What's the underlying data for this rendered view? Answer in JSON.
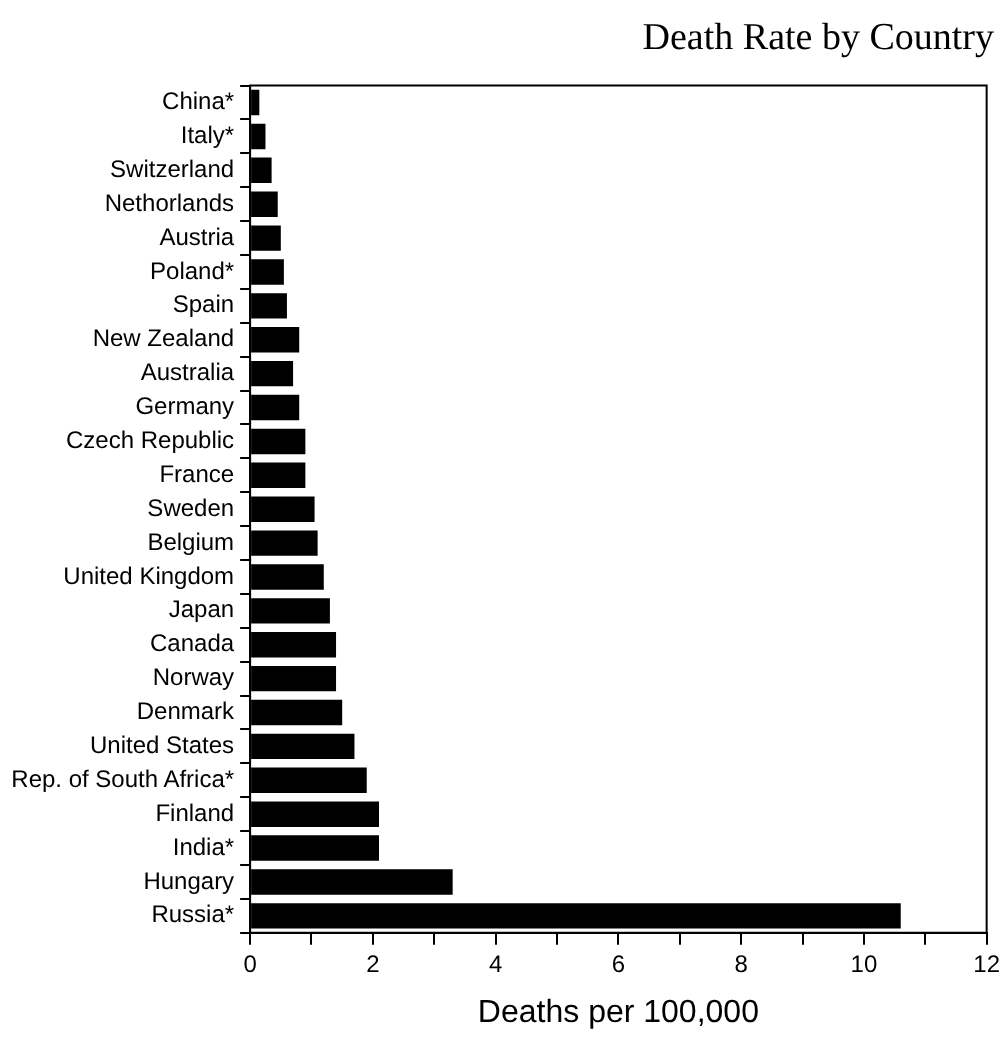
{
  "chart_data": {
    "type": "bar",
    "orientation": "horizontal",
    "title": "Death Rate by Country",
    "xlabel": "Deaths per 100,000",
    "categories": [
      "China*",
      "Italy*",
      "Switzerland",
      "Nethorlands",
      "Austria",
      "Poland*",
      "Spain",
      "New Zealand",
      "Australia",
      "Germany",
      "Czech Republic",
      "France",
      "Sweden",
      "Belgium",
      "United Kingdom",
      "Japan",
      "Canada",
      "Norway",
      "Denmark",
      "United States",
      "Rep. of South Africa*",
      "Finland",
      "India*",
      "Hungary",
      "Russia*"
    ],
    "values": [
      0.15,
      0.25,
      0.35,
      0.45,
      0.5,
      0.55,
      0.6,
      0.8,
      0.7,
      0.8,
      0.9,
      0.9,
      1.05,
      1.1,
      1.2,
      1.3,
      1.4,
      1.4,
      1.5,
      1.7,
      1.9,
      2.1,
      2.1,
      3.3,
      10.6
    ],
    "color": "#000000",
    "xlim": [
      0,
      12
    ],
    "xticks": [
      0,
      {
        "value": 1,
        "label": null
      },
      2,
      {
        "value": 3,
        "label": null
      },
      4,
      {
        "value": 5,
        "label": null
      },
      6,
      {
        "value": 7,
        "label": null
      },
      8,
      {
        "value": 9,
        "label": null
      },
      10,
      {
        "value": 11,
        "label": null
      },
      12
    ],
    "grid": false,
    "legend": false
  }
}
